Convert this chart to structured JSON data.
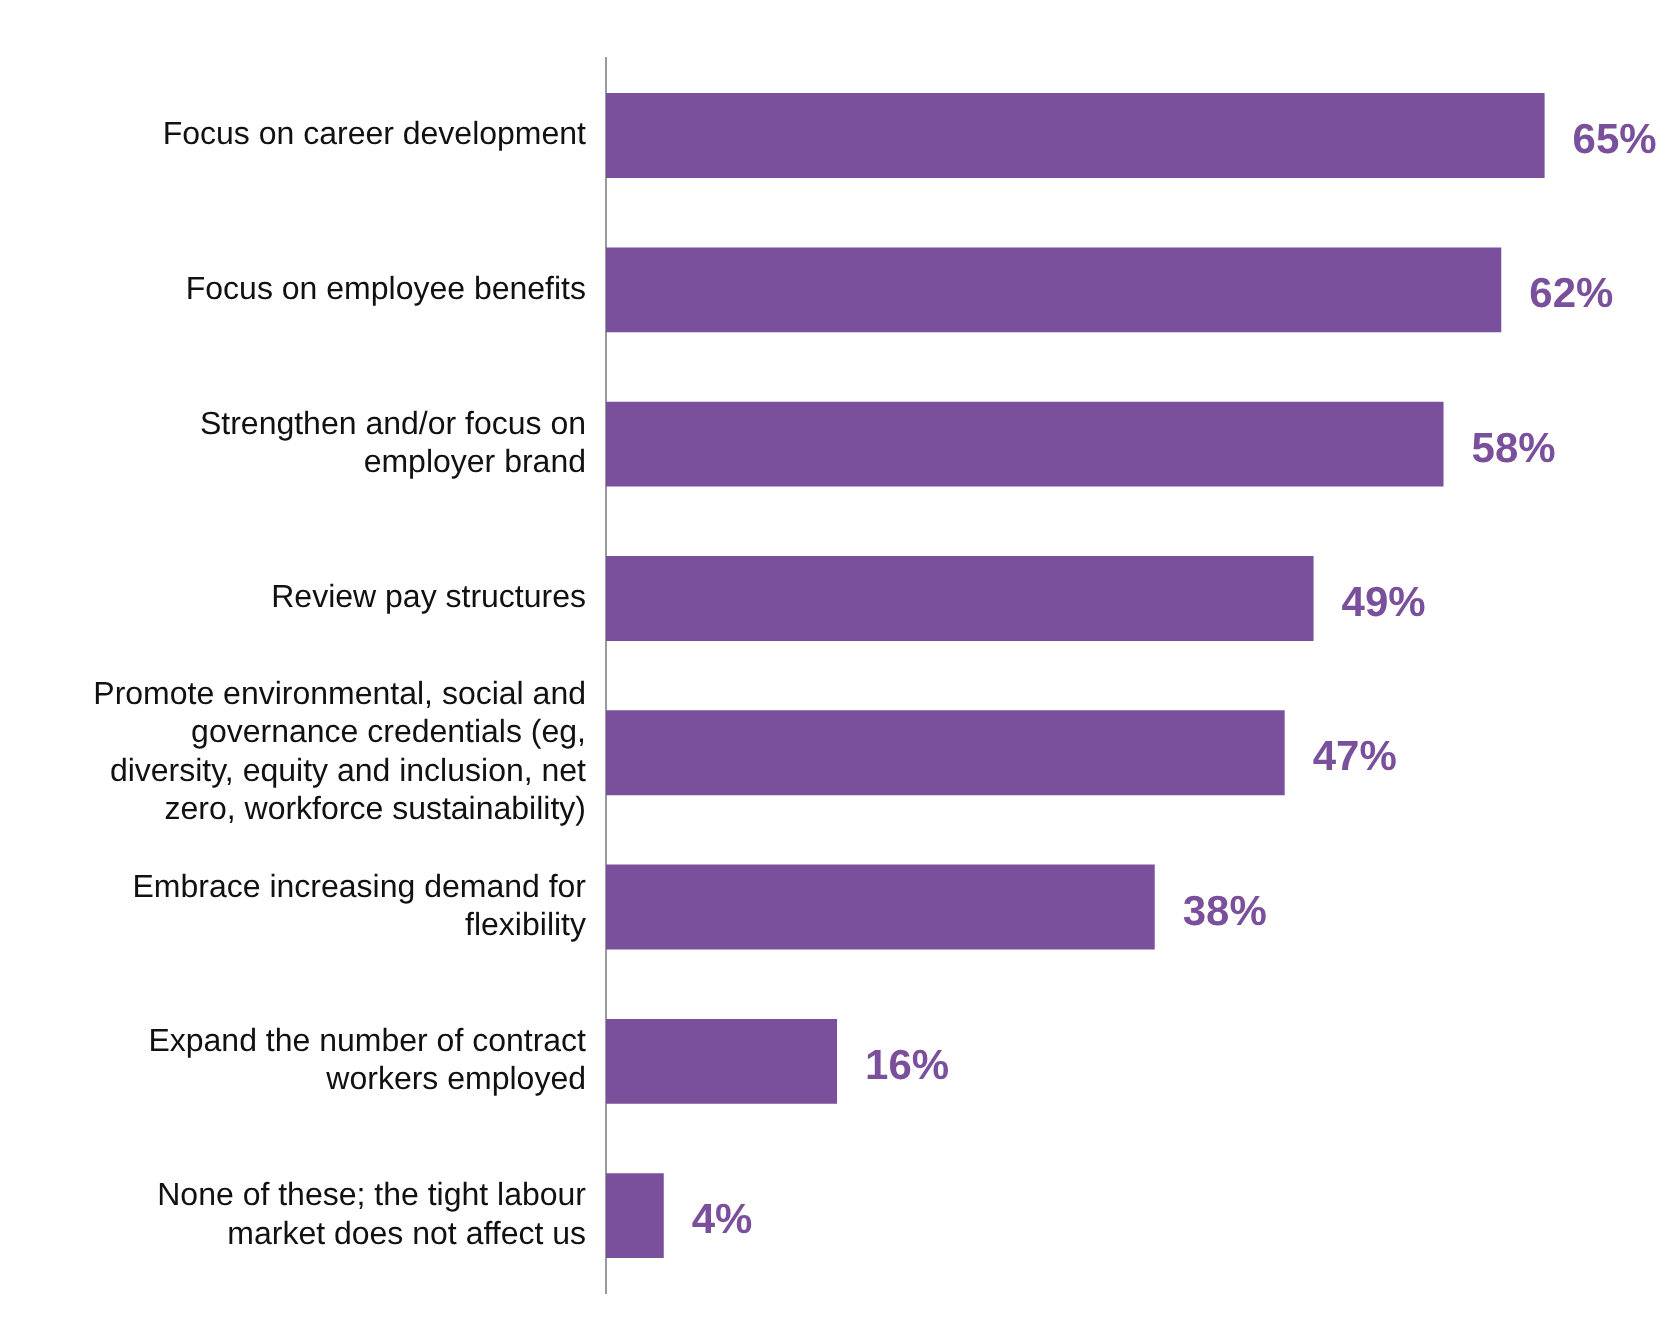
{
  "chart_data": {
    "type": "bar",
    "orientation": "horizontal",
    "categories": [
      "Focus on career development",
      "Focus on employee benefits",
      "Strengthen and/or focus on employer brand",
      "Review pay structures",
      "Promote environmental, social and governance credentials (eg, diversity, equity and inclusion, net zero, workforce sustainability)",
      "Embrace increasing demand for flexibility",
      "Expand the number of contract workers employed",
      "None of these; the tight labour market does not affect us"
    ],
    "values": [
      65,
      62,
      58,
      49,
      47,
      38,
      16,
      4
    ],
    "value_labels": [
      "65%",
      "62%",
      "58%",
      "49%",
      "47%",
      "38%",
      "16%",
      "4%"
    ],
    "color": "#7a4f9c"
  }
}
